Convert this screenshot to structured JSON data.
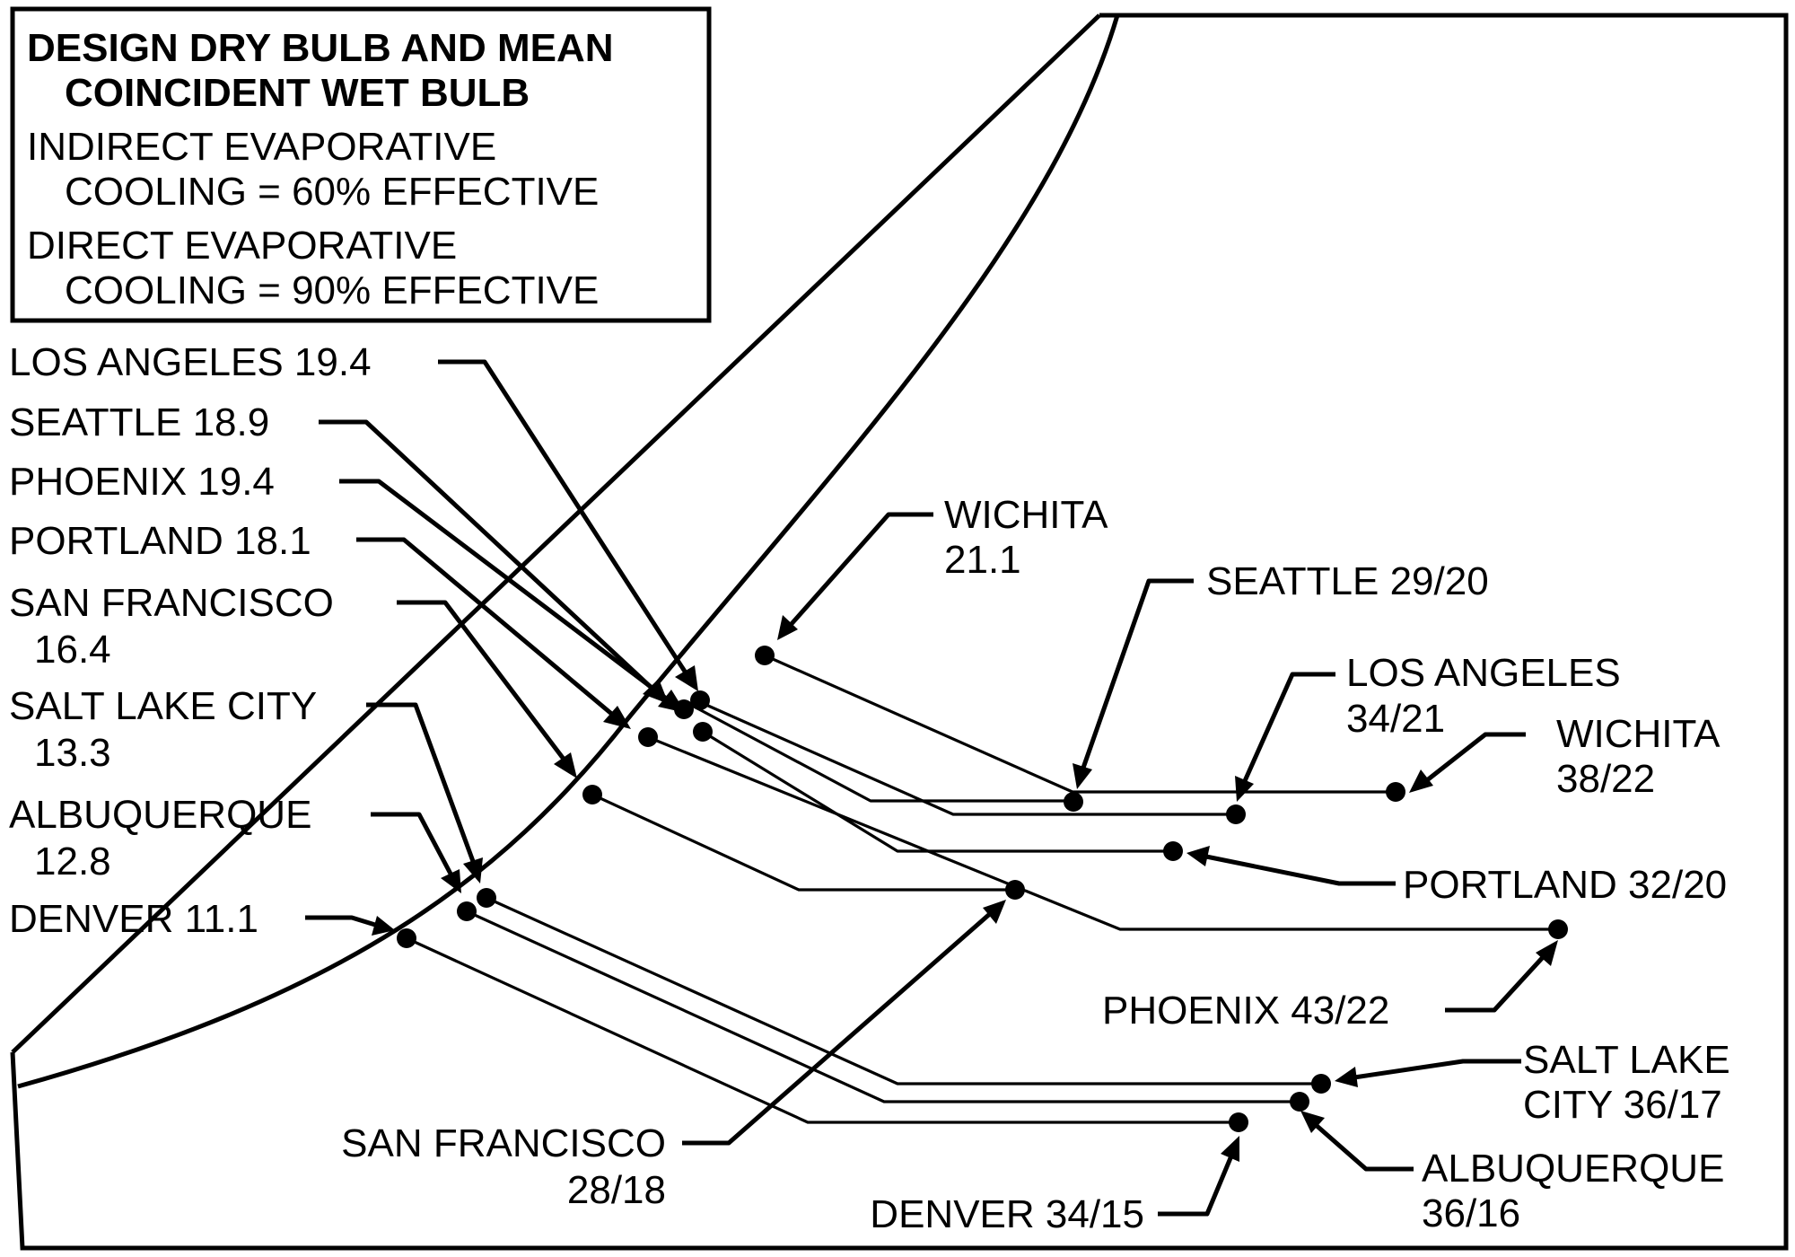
{
  "legend": {
    "title_line1": "DESIGN DRY BULB AND MEAN",
    "title_line2": "COINCIDENT WET BULB",
    "indirect_line1": "INDIRECT EVAPORATIVE",
    "indirect_line2": "COOLING = 60% EFFECTIVE",
    "direct_line1": "DIRECT EVAPORATIVE",
    "direct_line2": "COOLING = 90% EFFECTIVE"
  },
  "final_states": [
    {
      "city": "Los Angeles",
      "line1": "LOS ANGELES 19.4",
      "line2": ""
    },
    {
      "city": "Seattle",
      "line1": "SEATTLE 18.9",
      "line2": ""
    },
    {
      "city": "Phoenix",
      "line1": "PHOENIX 19.4",
      "line2": ""
    },
    {
      "city": "Portland",
      "line1": "PORTLAND 18.1",
      "line2": ""
    },
    {
      "city": "San Francisco",
      "line1": "SAN FRANCISCO",
      "line2": "16.4"
    },
    {
      "city": "Salt Lake City",
      "line1": "SALT LAKE CITY",
      "line2": "13.3"
    },
    {
      "city": "Albuquerque",
      "line1": "ALBUQUERQUE",
      "line2": "12.8"
    },
    {
      "city": "Denver",
      "line1": "DENVER 11.1",
      "line2": ""
    },
    {
      "city": "Wichita",
      "line1": "WICHITA",
      "line2": "21.1"
    }
  ],
  "design_conditions": [
    {
      "city": "Seattle",
      "line1": "SEATTLE 29/20",
      "line2": ""
    },
    {
      "city": "Los Angeles",
      "line1": "LOS ANGELES",
      "line2": "34/21"
    },
    {
      "city": "Wichita",
      "line1": "WICHITA",
      "line2": "38/22"
    },
    {
      "city": "Portland",
      "line1": "PORTLAND 32/20",
      "line2": ""
    },
    {
      "city": "Phoenix",
      "line1": "PHOENIX 43/22",
      "line2": ""
    },
    {
      "city": "Salt Lake City",
      "line1": "SALT LAKE",
      "line2": "CITY 36/17"
    },
    {
      "city": "Albuquerque",
      "line1": "ALBUQUERQUE",
      "line2": "36/16"
    },
    {
      "city": "San Francisco",
      "line1": "SAN FRANCISCO",
      "line2": "28/18"
    },
    {
      "city": "Denver",
      "line1": "DENVER 34/15",
      "line2": ""
    }
  ]
}
